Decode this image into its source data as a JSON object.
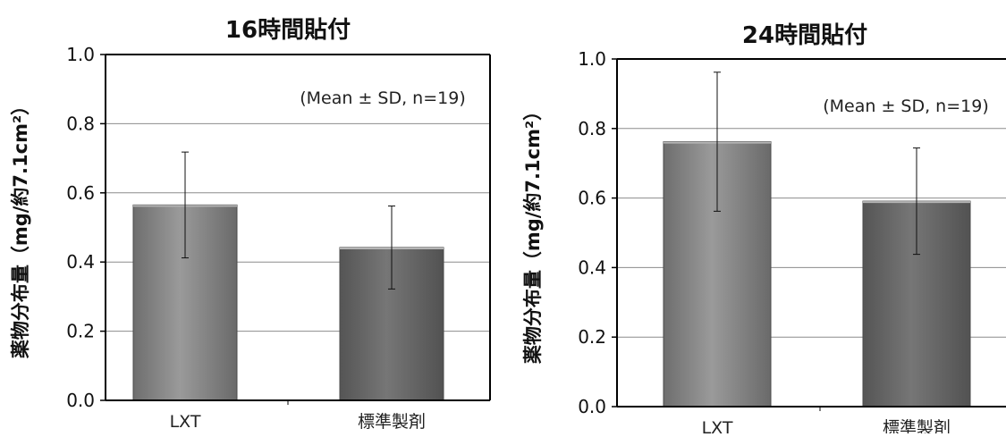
{
  "chart_data": [
    {
      "type": "bar",
      "title": "16時間貼付",
      "ylabel": "薬物分布量（mg/約7.1cm²）",
      "xlabel": "",
      "categories": [
        "LXT",
        "標準製剤"
      ],
      "values": [
        0.565,
        0.442
      ],
      "error_sd": [
        0.153,
        0.12
      ],
      "ylim": [
        0,
        1.0
      ],
      "yticks": [
        "0.0",
        "0.2",
        "0.4",
        "0.6",
        "0.8",
        "1.0"
      ],
      "grid": true,
      "annotation": "(Mean ± SD, n=19)",
      "bar_colors": [
        "#8a8a8a",
        "#666666"
      ]
    },
    {
      "type": "bar",
      "title": "24時間貼付",
      "ylabel": "薬物分布量（mg/約7.1cm²）",
      "xlabel": "",
      "categories": [
        "LXT",
        "標準製剤"
      ],
      "values": [
        0.762,
        0.591
      ],
      "error_sd": [
        0.2,
        0.153
      ],
      "ylim": [
        0,
        1.0
      ],
      "yticks": [
        "0.0",
        "0.2",
        "0.4",
        "0.6",
        "0.8",
        "1.0"
      ],
      "grid": true,
      "annotation": "(Mean ± SD, n=19)",
      "bar_colors": [
        "#8a8a8a",
        "#666666"
      ]
    }
  ]
}
